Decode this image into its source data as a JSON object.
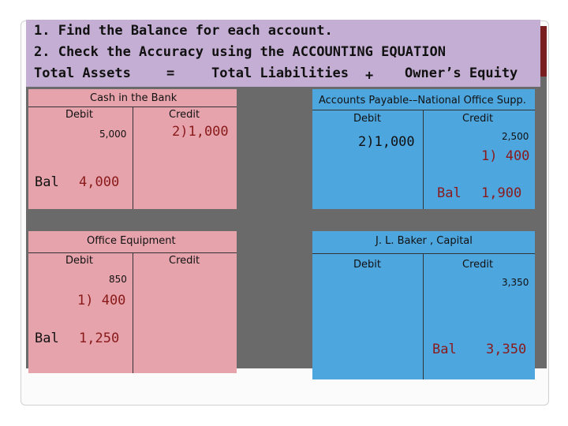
{
  "header": {
    "line1": "1.  Find the Balance for each account.",
    "line2": "2.  Check the Accuracy using the ACCOUNTING EQUATION",
    "equation": {
      "assets": "Total Assets",
      "equals": "=",
      "liabilities": "Total Liabilities",
      "plus": "+",
      "equity": "Owner’s Equity"
    }
  },
  "accounts": {
    "cash": {
      "title": "Cash in the Bank",
      "debit_label": "Debit",
      "credit_label": "Credit",
      "debit_entry": "5,000",
      "credit_entry": "2)1,000",
      "bal_label": "Bal",
      "bal_value": "4,000"
    },
    "accounts_payable": {
      "title": "Accounts Payable-–National Office Supp.",
      "debit_label": "Debit",
      "credit_label": "Credit",
      "debit_entry": "2)1,000",
      "credit_entry_1": "2,500",
      "credit_entry_2": "1) 400",
      "bal_label": "Bal",
      "bal_value": "1,900"
    },
    "office_equipment": {
      "title": "Office Equipment",
      "debit_label": "Debit",
      "credit_label": "Credit",
      "debit_entry_1": "850",
      "debit_entry_2": "1) 400",
      "bal_label": "Bal",
      "bal_value": "1,250"
    },
    "capital": {
      "title": "J. L. Baker , Capital",
      "debit_label": "Debit",
      "credit_label": "Credit",
      "credit_entry": "3,350",
      "bal_label": "Bal",
      "bal_value": "3,350"
    }
  },
  "colors": {
    "header_bg": "#c4aed3",
    "pink_panel": "#e6a3ac",
    "blue_panel": "#4ea6df",
    "entry_red": "#8a1a1a"
  }
}
